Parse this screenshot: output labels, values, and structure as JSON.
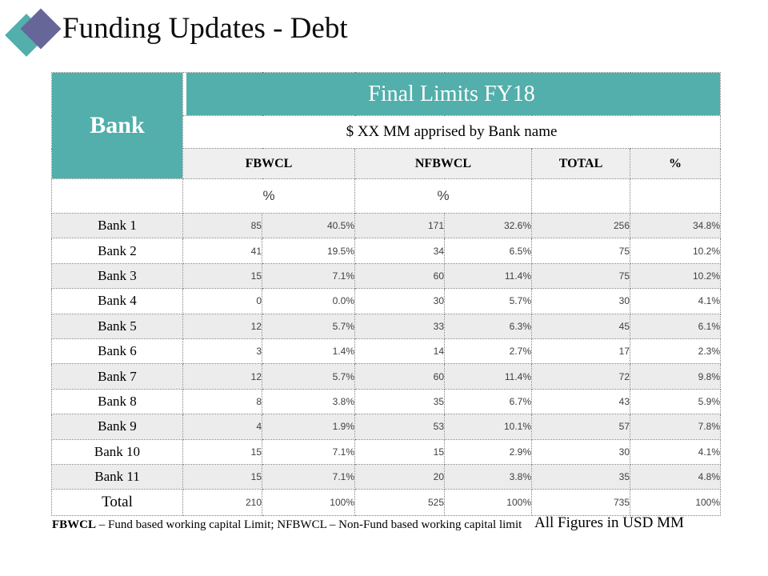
{
  "title": {
    "text": "Funding Updates - Debt"
  },
  "colors": {
    "teal": "#52AFAB",
    "purple": "#666699",
    "row_alt": "#ECECEC",
    "header_bg": "#EFEFEF",
    "border": "#808080",
    "number_text": "#404040"
  },
  "table": {
    "bank_header": "Bank",
    "group_header": "Final Limits FY18",
    "group_subtitle": "$ XX MM apprised by Bank name",
    "columns": [
      {
        "label": "FBWCL",
        "sub": "%"
      },
      {
        "label": "NFBWCL",
        "sub": "%"
      },
      {
        "label": "TOTAL",
        "sub": ""
      },
      {
        "label": "%",
        "sub": ""
      }
    ],
    "rows": [
      {
        "name": "Bank 1",
        "cells": [
          "85",
          "40.5%",
          "171",
          "32.6%",
          "256",
          "34.8%"
        ]
      },
      {
        "name": "Bank 2",
        "cells": [
          "41",
          "19.5%",
          "34",
          "6.5%",
          "75",
          "10.2%"
        ]
      },
      {
        "name": "Bank 3",
        "cells": [
          "15",
          "7.1%",
          "60",
          "11.4%",
          "75",
          "10.2%"
        ]
      },
      {
        "name": "Bank 4",
        "cells": [
          "0",
          "0.0%",
          "30",
          "5.7%",
          "30",
          "4.1%"
        ]
      },
      {
        "name": "Bank 5",
        "cells": [
          "12",
          "5.7%",
          "33",
          "6.3%",
          "45",
          "6.1%"
        ]
      },
      {
        "name": "Bank 6",
        "cells": [
          "3",
          "1.4%",
          "14",
          "2.7%",
          "17",
          "2.3%"
        ]
      },
      {
        "name": "Bank 7",
        "cells": [
          "12",
          "5.7%",
          "60",
          "11.4%",
          "72",
          "9.8%"
        ]
      },
      {
        "name": "Bank 8",
        "cells": [
          "8",
          "3.8%",
          "35",
          "6.7%",
          "43",
          "5.9%"
        ]
      },
      {
        "name": "Bank 9",
        "cells": [
          "4",
          "1.9%",
          "53",
          "10.1%",
          "57",
          "7.8%"
        ]
      },
      {
        "name": "Bank 10",
        "cells": [
          "15",
          "7.1%",
          "15",
          "2.9%",
          "30",
          "4.1%"
        ]
      },
      {
        "name": "Bank 11",
        "cells": [
          "15",
          "7.1%",
          "20",
          "3.8%",
          "35",
          "4.8%"
        ]
      }
    ],
    "total_row": {
      "name": "Total",
      "cells": [
        "210",
        "100%",
        "525",
        "100%",
        "735",
        "100%"
      ]
    }
  },
  "footer": {
    "note_term": "FBWCL",
    "note_rest": " – Fund based working capital Limit; NFBWCL – Non-Fund based working capital limit",
    "right_text": "All Figures in USD MM"
  }
}
